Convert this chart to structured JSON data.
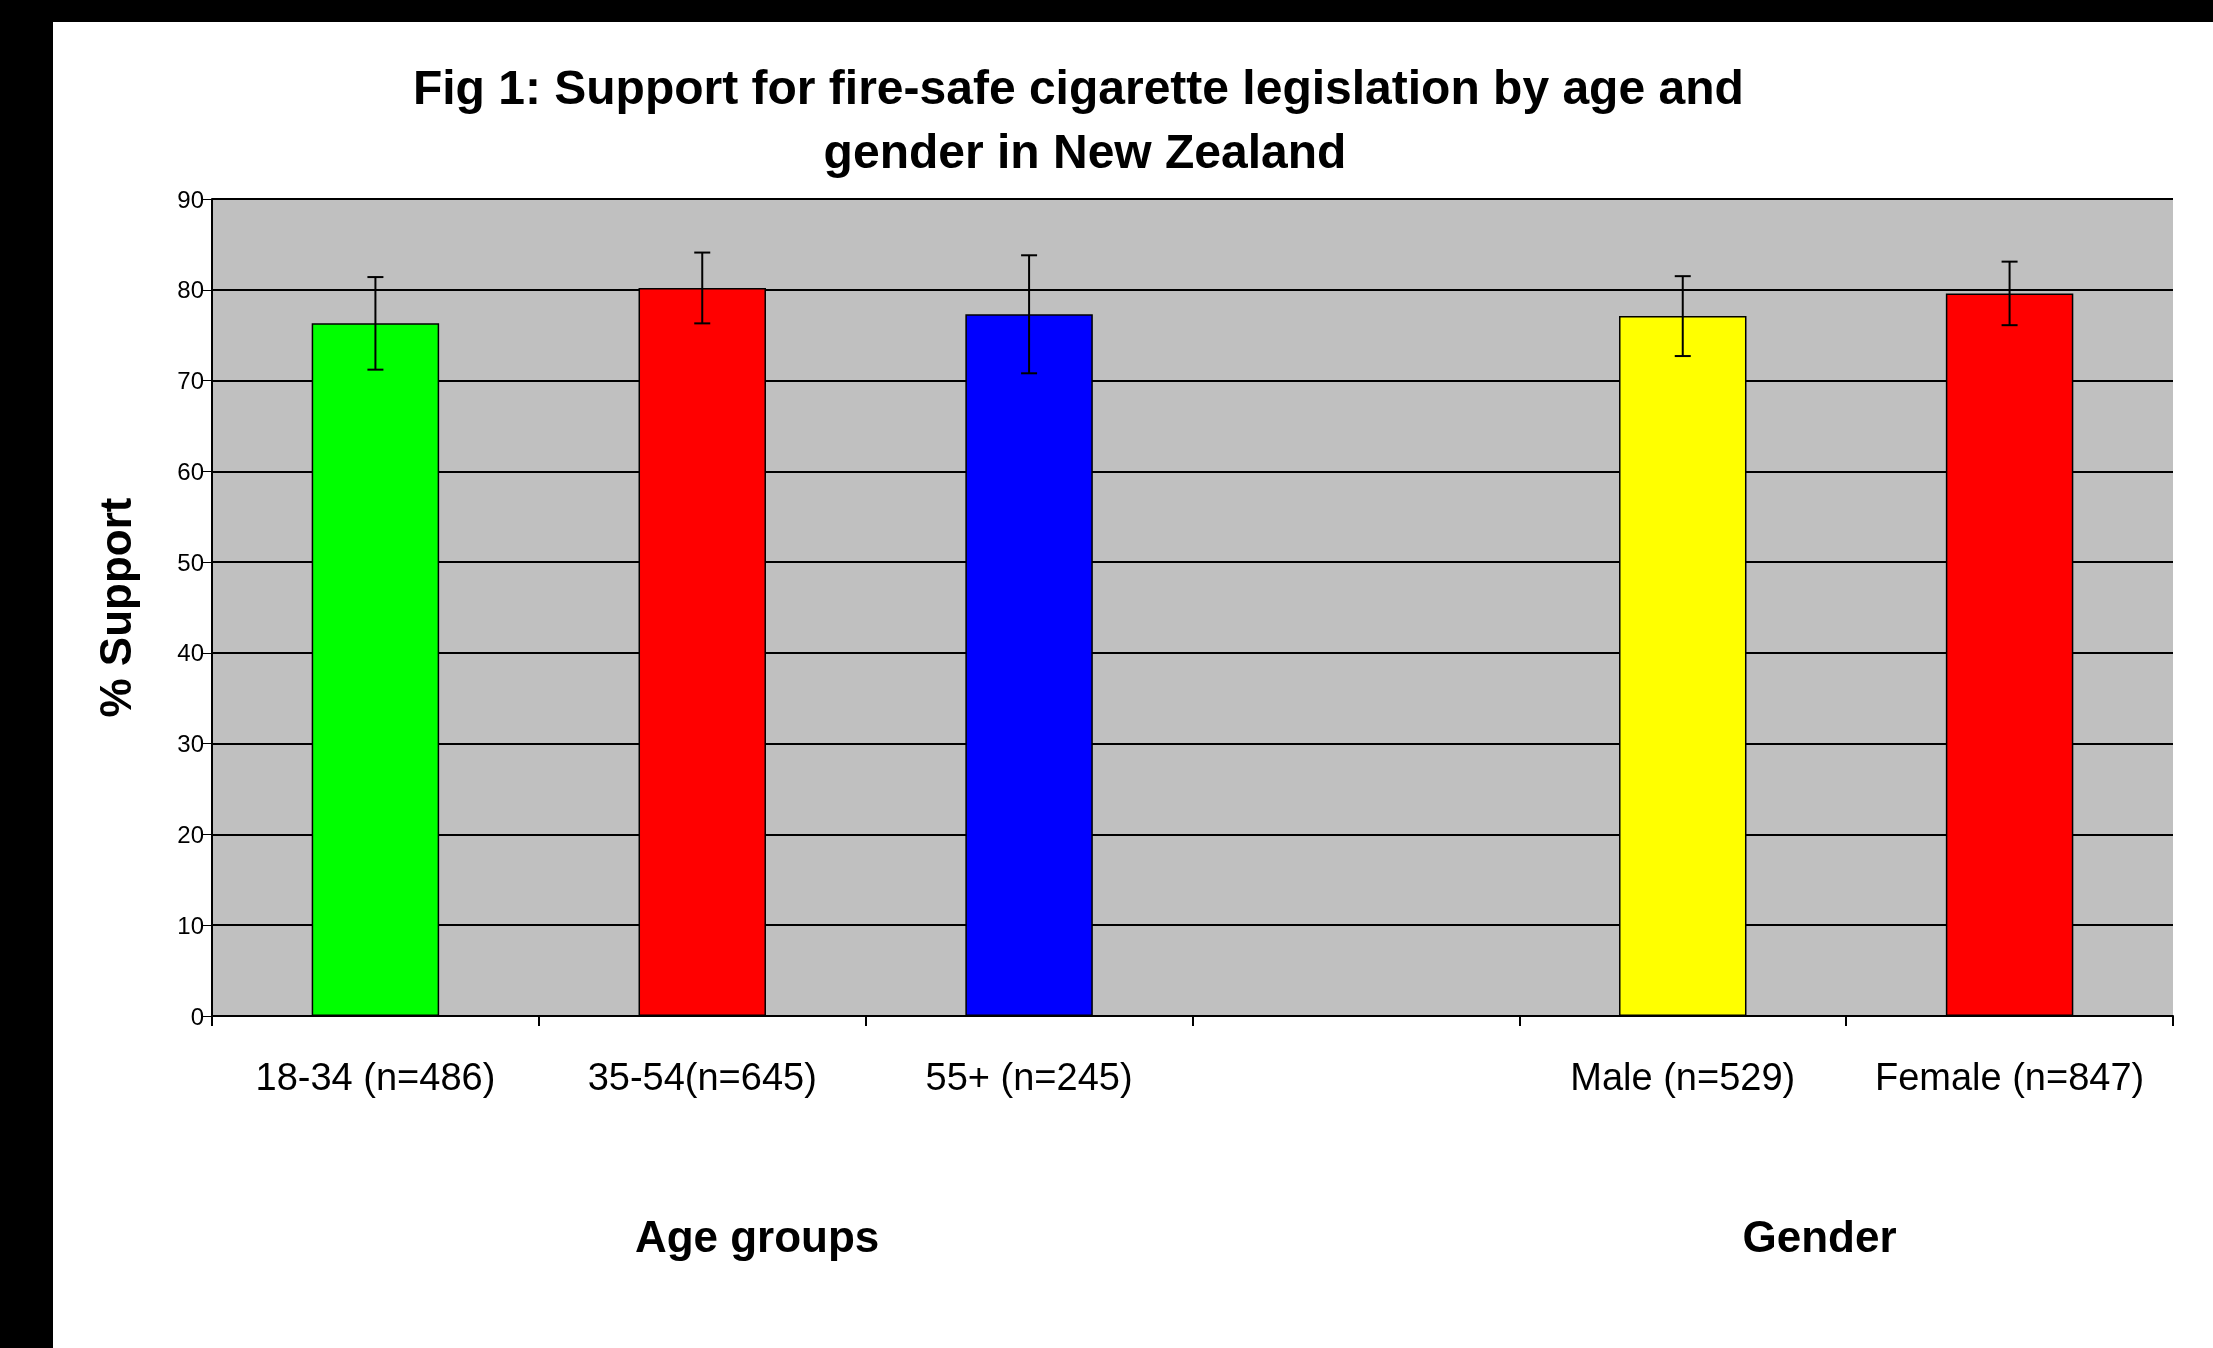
{
  "chart_data": {
    "type": "bar",
    "title": "Fig 1: Support for fire-safe cigarette legislation by age and gender in New Zealand",
    "ylabel": "% Support",
    "categories": [
      "18-34 (n=486)",
      "35-54(n=645)",
      "55+ (n=245)",
      null,
      "Male (n=529)",
      "Female (n=847)"
    ],
    "values": [
      76.3,
      80.2,
      77.3,
      null,
      77.1,
      79.6
    ],
    "colors": [
      "#00ff00",
      "#ff0000",
      "#0000ff",
      null,
      "#ffff00",
      "#ff0000"
    ],
    "errors": [
      5.1,
      3.9,
      6.5,
      null,
      4.4,
      3.5
    ],
    "annotations": [
      "Age groups",
      "Gender"
    ],
    "ylim": [
      0,
      90
    ],
    "yticks": [
      0,
      10,
      20,
      30,
      40,
      50,
      60,
      70,
      80,
      90
    ],
    "grid": "y"
  }
}
